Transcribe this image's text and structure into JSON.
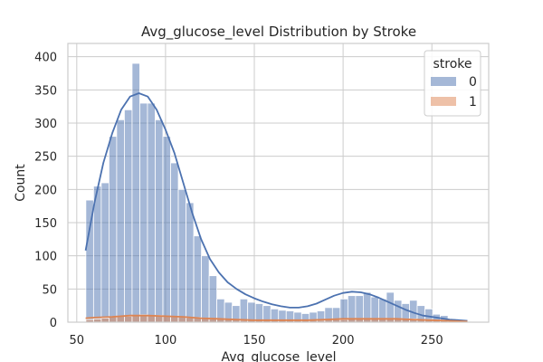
{
  "chart_data": {
    "type": "histogram",
    "title": "Avg_glucose_level Distribution by Stroke",
    "xlabel": "Avg_glucose_level",
    "ylabel": "Count",
    "xlim": [
      45,
      282
    ],
    "ylim": [
      0,
      420
    ],
    "x_ticks": [
      50,
      100,
      150,
      200,
      250
    ],
    "y_ticks": [
      0,
      50,
      100,
      150,
      200,
      250,
      300,
      350,
      400
    ],
    "grid": true,
    "legend": {
      "title": "stroke",
      "placement": "top-right"
    },
    "bins": {
      "start": 55.12,
      "width": 4.34,
      "count": 50
    },
    "series": [
      {
        "name": "0",
        "color": "#4c72b0",
        "values": [
          184,
          205,
          210,
          280,
          305,
          320,
          390,
          330,
          330,
          305,
          280,
          240,
          200,
          180,
          130,
          100,
          70,
          35,
          30,
          25,
          35,
          30,
          28,
          25,
          20,
          18,
          17,
          15,
          13,
          15,
          17,
          22,
          22,
          35,
          40,
          40,
          45,
          38,
          35,
          45,
          33,
          28,
          33,
          25,
          20,
          12,
          10,
          5,
          3,
          2
        ],
        "kde": [
          [
            55,
            108
          ],
          [
            60,
            180
          ],
          [
            65,
            240
          ],
          [
            70,
            285
          ],
          [
            75,
            320
          ],
          [
            80,
            340
          ],
          [
            85,
            345
          ],
          [
            90,
            340
          ],
          [
            95,
            320
          ],
          [
            100,
            290
          ],
          [
            105,
            255
          ],
          [
            110,
            210
          ],
          [
            115,
            165
          ],
          [
            120,
            125
          ],
          [
            125,
            95
          ],
          [
            130,
            75
          ],
          [
            135,
            60
          ],
          [
            140,
            50
          ],
          [
            145,
            42
          ],
          [
            150,
            36
          ],
          [
            155,
            31
          ],
          [
            160,
            27
          ],
          [
            165,
            24
          ],
          [
            170,
            22
          ],
          [
            175,
            22
          ],
          [
            180,
            24
          ],
          [
            185,
            28
          ],
          [
            190,
            34
          ],
          [
            195,
            40
          ],
          [
            200,
            44
          ],
          [
            205,
            46
          ],
          [
            210,
            45
          ],
          [
            215,
            42
          ],
          [
            220,
            37
          ],
          [
            225,
            31
          ],
          [
            230,
            25
          ],
          [
            235,
            19
          ],
          [
            240,
            14
          ],
          [
            245,
            10
          ],
          [
            250,
            8
          ],
          [
            255,
            6
          ],
          [
            260,
            4
          ],
          [
            265,
            3
          ],
          [
            270,
            2
          ]
        ]
      },
      {
        "name": "1",
        "color": "#dd8452",
        "values": [
          4,
          5,
          6,
          8,
          9,
          9,
          10,
          11,
          10,
          10,
          9,
          9,
          8,
          7,
          7,
          6,
          5,
          5,
          4,
          4,
          3,
          3,
          3,
          3,
          3,
          3,
          3,
          3,
          3,
          3,
          3,
          4,
          4,
          4,
          5,
          5,
          5,
          5,
          5,
          5,
          5,
          5,
          5,
          4,
          4,
          3,
          3,
          2,
          1,
          1
        ],
        "kde": [
          [
            55,
            6
          ],
          [
            60,
            7
          ],
          [
            70,
            8
          ],
          [
            80,
            10
          ],
          [
            90,
            10
          ],
          [
            100,
            9
          ],
          [
            110,
            8
          ],
          [
            120,
            6
          ],
          [
            130,
            5
          ],
          [
            140,
            4
          ],
          [
            150,
            3
          ],
          [
            160,
            3
          ],
          [
            170,
            3
          ],
          [
            180,
            3
          ],
          [
            190,
            4
          ],
          [
            200,
            5
          ],
          [
            210,
            5
          ],
          [
            220,
            5
          ],
          [
            230,
            5
          ],
          [
            240,
            4
          ],
          [
            250,
            3
          ],
          [
            260,
            2
          ],
          [
            270,
            1
          ]
        ]
      }
    ]
  }
}
